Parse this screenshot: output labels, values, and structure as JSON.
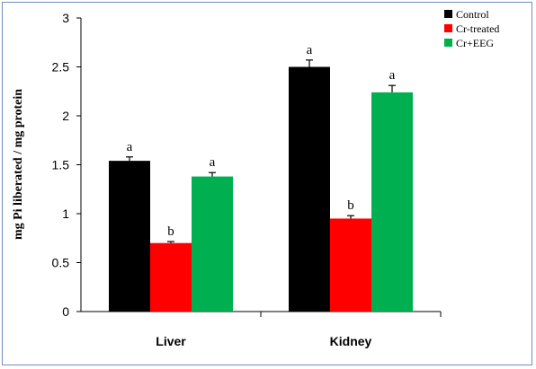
{
  "chart_data": {
    "type": "bar",
    "title": "",
    "xlabel": "",
    "ylabel": "mg Pi liberated / mg protein",
    "ylim": [
      0,
      3
    ],
    "yticks": [
      "0",
      "0.5",
      "1",
      "1.5",
      "2",
      "2.5",
      "3"
    ],
    "categories": [
      "Liver",
      "Kidney"
    ],
    "series": [
      {
        "name": "Control",
        "color": "#000000",
        "values": [
          1.54,
          2.5
        ],
        "errors": [
          0.04,
          0.07
        ],
        "labels": [
          "a",
          "a"
        ]
      },
      {
        "name": "Cr-treated",
        "color": "#ff0000",
        "values": [
          0.7,
          0.95
        ],
        "errors": [
          0.015,
          0.03
        ],
        "labels": [
          "b",
          "b"
        ]
      },
      {
        "name": "Cr+EEG",
        "color": "#00b050",
        "values": [
          1.38,
          2.24
        ],
        "errors": [
          0.04,
          0.07
        ],
        "labels": [
          "a",
          "a"
        ]
      }
    ],
    "legend_position": "top-right",
    "grid": false
  }
}
